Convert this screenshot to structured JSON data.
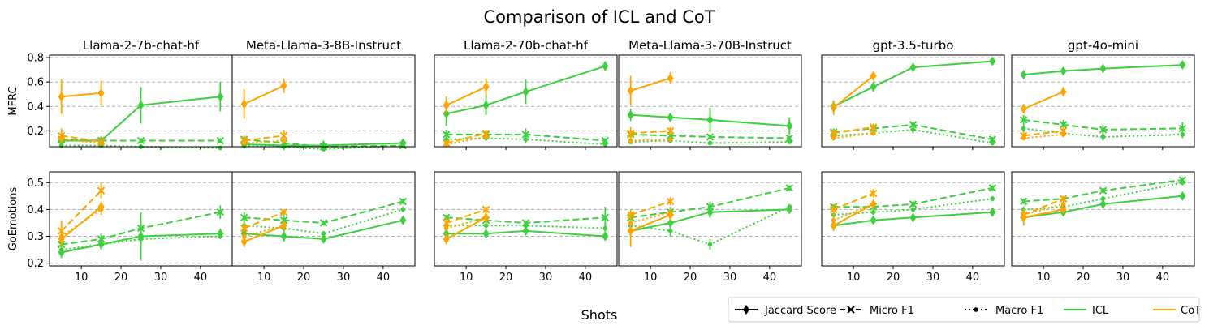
{
  "figure": {
    "title": "Comparison of ICL and CoT",
    "xlabel": "Shots"
  },
  "legend": {
    "position": "bottom-right",
    "entries": [
      {
        "label": "Jaccard Score",
        "style": "solid",
        "marker": "diamond"
      },
      {
        "label": "Micro F1",
        "style": "dashed",
        "marker": "x"
      },
      {
        "label": "Macro F1",
        "style": "dotted",
        "marker": "dot"
      },
      {
        "label": "ICL",
        "style": "solid",
        "color": "#3ecf3e"
      },
      {
        "label": "CoT",
        "style": "solid",
        "color": "#ffa500"
      }
    ]
  },
  "colors": {
    "icl": "#3ecf3e",
    "cot": "#ffa500",
    "grid": "#b0b0b0"
  },
  "x_ticks": [
    "10",
    "20",
    "30",
    "40"
  ],
  "row_labels": [
    "MFRC",
    "GoEmotions"
  ],
  "y_ticks": {
    "MFRC": [
      "0.2",
      "0.4",
      "0.6",
      "0.8"
    ],
    "GoEmotions": [
      "0.2",
      "0.3",
      "0.4",
      "0.5"
    ]
  },
  "models": [
    "Llama-2-7b-chat-hf",
    "Meta-Llama-3-8B-Instruct",
    "Llama-2-70b-chat-hf",
    "Meta-Llama-3-70B-Instruct",
    "gpt-3.5-turbo",
    "gpt-4o-mini"
  ],
  "chart_data": {
    "type": "line",
    "x_icl": [
      5,
      15,
      25,
      45
    ],
    "x_cot": [
      5,
      15
    ],
    "xlim": [
      2,
      48
    ],
    "ylim": {
      "MFRC": [
        0.07,
        0.82
      ],
      "GoEmotions": [
        0.19,
        0.54
      ]
    },
    "MFRC": [
      {
        "model": "Llama-2-7b-chat-hf",
        "icl": {
          "jaccard": [
            0.12,
            0.12,
            0.41,
            0.48
          ],
          "jaccard_err": [
            0.03,
            0.03,
            0.15,
            0.12
          ],
          "micro": [
            0.13,
            0.12,
            0.12,
            0.12
          ],
          "micro_err": [
            0.03,
            0.02,
            0.02,
            0.02
          ],
          "macro": [
            0.08,
            0.08,
            0.07,
            0.06
          ],
          "macro_err": [
            0.02,
            0.01,
            0.02,
            0.01
          ]
        },
        "cot": {
          "jaccard": [
            0.48,
            0.51
          ],
          "jaccard_err": [
            0.14,
            0.1
          ],
          "micro": [
            0.16,
            0.11
          ],
          "micro_err": [
            0.06,
            0.03
          ],
          "macro": [
            0.13,
            0.1
          ],
          "macro_err": [
            0.03,
            0.02
          ]
        }
      },
      {
        "model": "Meta-Llama-3-8B-Instruct",
        "icl": {
          "jaccard": [
            0.09,
            0.08,
            0.08,
            0.1
          ],
          "jaccard_err": [
            0.03,
            0.02,
            0.04,
            0.02
          ],
          "micro": [
            0.13,
            0.1,
            0.07,
            0.08
          ],
          "micro_err": [
            0.02,
            0.02,
            0.02,
            0.02
          ],
          "macro": [
            0.08,
            0.07,
            0.05,
            0.08
          ],
          "macro_err": [
            0.01,
            0.01,
            0.01,
            0.01
          ]
        },
        "cot": {
          "jaccard": [
            0.42,
            0.57
          ],
          "jaccard_err": [
            0.12,
            0.06
          ],
          "micro": [
            0.12,
            0.16
          ],
          "micro_err": [
            0.04,
            0.05
          ],
          "macro": [
            0.1,
            0.12
          ],
          "macro_err": [
            0.02,
            0.02
          ]
        }
      },
      {
        "model": "Llama-2-70b-chat-hf",
        "icl": {
          "jaccard": [
            0.34,
            0.41,
            0.52,
            0.73
          ],
          "jaccard_err": [
            0.1,
            0.08,
            0.1,
            0.04
          ],
          "micro": [
            0.17,
            0.17,
            0.17,
            0.12
          ],
          "micro_err": [
            0.04,
            0.03,
            0.05,
            0.02
          ],
          "macro": [
            0.13,
            0.14,
            0.13,
            0.09
          ],
          "macro_err": [
            0.02,
            0.02,
            0.03,
            0.01
          ]
        },
        "cot": {
          "jaccard": [
            0.41,
            0.56
          ],
          "jaccard_err": [
            0.07,
            0.07
          ],
          "micro": [
            0.1,
            0.18
          ],
          "micro_err": [
            0.02,
            0.03
          ],
          "macro": [
            0.09,
            0.15
          ],
          "macro_err": [
            0.02,
            0.02
          ]
        }
      },
      {
        "model": "Meta-Llama-3-70B-Instruct",
        "icl": {
          "jaccard": [
            0.33,
            0.31,
            0.29,
            0.24
          ],
          "jaccard_err": [
            0.05,
            0.03,
            0.1,
            0.07
          ],
          "micro": [
            0.17,
            0.16,
            0.15,
            0.14
          ],
          "micro_err": [
            0.03,
            0.03,
            0.02,
            0.02
          ],
          "macro": [
            0.11,
            0.12,
            0.1,
            0.11
          ],
          "macro_err": [
            0.02,
            0.02,
            0.02,
            0.02
          ]
        },
        "cot": {
          "jaccard": [
            0.53,
            0.63
          ],
          "jaccard_err": [
            0.12,
            0.05
          ],
          "micro": [
            0.18,
            0.2
          ],
          "micro_err": [
            0.05,
            0.03
          ],
          "macro": [
            0.12,
            0.13
          ],
          "macro_err": [
            0.02,
            0.02
          ]
        }
      },
      {
        "model": "gpt-3.5-turbo",
        "icl": {
          "jaccard": [
            0.4,
            0.56,
            0.72,
            0.77
          ],
          "jaccard_err": [
            0.05,
            0.04,
            0.03,
            0.02
          ],
          "micro": [
            0.19,
            0.22,
            0.25,
            0.13
          ],
          "micro_err": [
            0.03,
            0.02,
            0.02,
            0.02
          ],
          "macro": [
            0.16,
            0.18,
            0.21,
            0.1
          ],
          "macro_err": [
            0.02,
            0.02,
            0.03,
            0.02
          ]
        },
        "cot": {
          "jaccard": [
            0.39,
            0.65
          ],
          "jaccard_err": [
            0.06,
            0.03
          ],
          "micro": [
            0.18,
            0.23
          ],
          "micro_err": [
            0.03,
            0.03
          ],
          "macro": [
            0.14,
            0.18
          ],
          "macro_err": [
            0.02,
            0.02
          ]
        }
      },
      {
        "model": "gpt-4o-mini",
        "icl": {
          "jaccard": [
            0.66,
            0.69,
            0.71,
            0.74
          ],
          "jaccard_err": [
            0.03,
            0.02,
            0.03,
            0.02
          ],
          "micro": [
            0.29,
            0.25,
            0.21,
            0.22
          ],
          "micro_err": [
            0.04,
            0.04,
            0.04,
            0.05
          ],
          "macro": [
            0.22,
            0.18,
            0.15,
            0.17
          ],
          "macro_err": [
            0.03,
            0.03,
            0.03,
            0.03
          ]
        },
        "cot": {
          "jaccard": [
            0.38,
            0.52
          ],
          "jaccard_err": [
            0.04,
            0.04
          ],
          "micro": [
            0.16,
            0.2
          ],
          "micro_err": [
            0.03,
            0.03
          ],
          "macro": [
            0.14,
            0.17
          ],
          "macro_err": [
            0.02,
            0.02
          ]
        }
      }
    ],
    "GoEmotions": [
      {
        "model": "Llama-2-7b-chat-hf",
        "icl": {
          "jaccard": [
            0.24,
            0.27,
            0.3,
            0.31
          ],
          "jaccard_err": [
            0.02,
            0.02,
            0.09,
            0.02
          ],
          "micro": [
            0.27,
            0.29,
            0.33,
            0.39
          ],
          "micro_err": [
            0.02,
            0.02,
            0.02,
            0.025
          ],
          "macro": [
            0.25,
            0.27,
            0.29,
            0.3
          ],
          "macro_err": [
            0.01,
            0.01,
            0.01,
            0.01
          ]
        },
        "cot": {
          "jaccard": [
            0.29,
            0.41
          ],
          "jaccard_err": [
            0.03,
            0.02
          ],
          "micro": [
            0.32,
            0.47
          ],
          "micro_err": [
            0.04,
            0.03
          ],
          "macro": [
            0.3,
            0.4
          ],
          "macro_err": [
            0.02,
            0.02
          ]
        }
      },
      {
        "model": "Meta-Llama-3-8B-Instruct",
        "icl": {
          "jaccard": [
            0.31,
            0.3,
            0.29,
            0.36
          ],
          "jaccard_err": [
            0.02,
            0.02,
            0.01,
            0.015
          ],
          "micro": [
            0.37,
            0.36,
            0.35,
            0.43
          ],
          "micro_err": [
            0.02,
            0.02,
            0.01,
            0.01
          ],
          "macro": [
            0.34,
            0.33,
            0.31,
            0.4
          ],
          "macro_err": [
            0.01,
            0.01,
            0.01,
            0.01
          ]
        },
        "cot": {
          "jaccard": [
            0.28,
            0.34
          ],
          "jaccard_err": [
            0.02,
            0.015
          ],
          "micro": [
            0.33,
            0.39
          ],
          "micro_err": [
            0.02,
            0.01
          ],
          "macro": [
            0.3,
            0.34
          ],
          "macro_err": [
            0.01,
            0.01
          ]
        }
      },
      {
        "model": "Llama-2-70b-chat-hf",
        "icl": {
          "jaccard": [
            0.31,
            0.31,
            0.32,
            0.3
          ],
          "jaccard_err": [
            0.02,
            0.01,
            0.015,
            0.015
          ],
          "micro": [
            0.37,
            0.36,
            0.35,
            0.37
          ],
          "micro_err": [
            0.01,
            0.01,
            0.01,
            0.04
          ],
          "macro": [
            0.34,
            0.34,
            0.34,
            0.33
          ],
          "macro_err": [
            0.01,
            0.01,
            0.01,
            0.02
          ]
        },
        "cot": {
          "jaccard": [
            0.29,
            0.37
          ],
          "jaccard_err": [
            0.02,
            0.02
          ],
          "micro": [
            0.35,
            0.4
          ],
          "micro_err": [
            0.02,
            0.01
          ],
          "macro": [
            0.33,
            0.37
          ],
          "macro_err": [
            0.01,
            0.01
          ]
        }
      },
      {
        "model": "Meta-Llama-3-70B-Instruct",
        "icl": {
          "jaccard": [
            0.32,
            0.35,
            0.39,
            0.4
          ],
          "jaccard_err": [
            0.02,
            0.02,
            0.02,
            0.015
          ],
          "micro": [
            0.37,
            0.39,
            0.41,
            0.48
          ],
          "micro_err": [
            0.02,
            0.02,
            0.02,
            0.01
          ],
          "macro": [
            0.34,
            0.32,
            0.27,
            0.41
          ],
          "macro_err": [
            0.02,
            0.02,
            0.02,
            0.01
          ]
        },
        "cot": {
          "jaccard": [
            0.32,
            0.38
          ],
          "jaccard_err": [
            0.06,
            0.02
          ],
          "micro": [
            0.38,
            0.43
          ],
          "micro_err": [
            0.02,
            0.015
          ],
          "macro": [
            0.35,
            0.39
          ],
          "macro_err": [
            0.02,
            0.01
          ]
        }
      },
      {
        "model": "gpt-3.5-turbo",
        "icl": {
          "jaccard": [
            0.34,
            0.36,
            0.37,
            0.39
          ],
          "jaccard_err": [
            0.01,
            0.01,
            0.015,
            0.015
          ],
          "micro": [
            0.41,
            0.41,
            0.42,
            0.48
          ],
          "micro_err": [
            0.01,
            0.01,
            0.01,
            0.01
          ],
          "macro": [
            0.38,
            0.39,
            0.4,
            0.44
          ],
          "macro_err": [
            0.01,
            0.01,
            0.01,
            0.01
          ]
        },
        "cot": {
          "jaccard": [
            0.34,
            0.42
          ],
          "jaccard_err": [
            0.02,
            0.015
          ],
          "micro": [
            0.4,
            0.46
          ],
          "micro_err": [
            0.02,
            0.015
          ],
          "macro": [
            0.36,
            0.42
          ],
          "macro_err": [
            0.02,
            0.01
          ]
        }
      },
      {
        "model": "gpt-4o-mini",
        "icl": {
          "jaccard": [
            0.37,
            0.39,
            0.42,
            0.45
          ],
          "jaccard_err": [
            0.015,
            0.01,
            0.015,
            0.015
          ],
          "micro": [
            0.43,
            0.44,
            0.47,
            0.51
          ],
          "micro_err": [
            0.01,
            0.01,
            0.01,
            0.01
          ],
          "macro": [
            0.4,
            0.41,
            0.44,
            0.5
          ],
          "macro_err": [
            0.01,
            0.01,
            0.01,
            0.01
          ]
        },
        "cot": {
          "jaccard": [
            0.37,
            0.4
          ],
          "jaccard_err": [
            0.03,
            0.015
          ],
          "micro": [
            0.38,
            0.44
          ],
          "micro_err": [
            0.02,
            0.01
          ],
          "macro": [
            0.38,
            0.42
          ],
          "macro_err": [
            0.02,
            0.01
          ]
        }
      }
    ]
  }
}
